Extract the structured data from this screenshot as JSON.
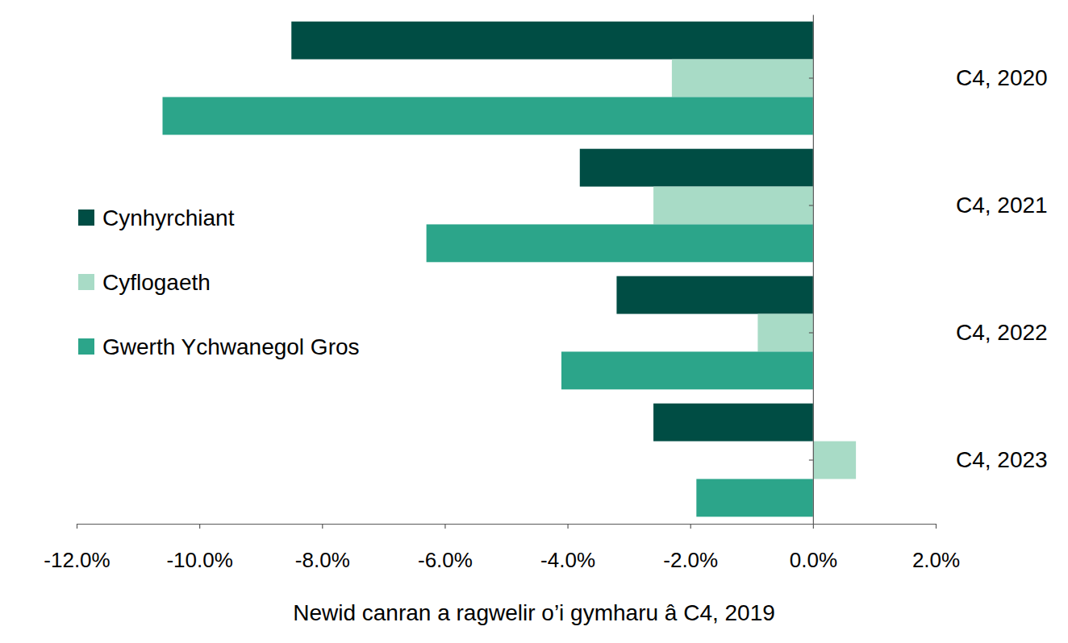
{
  "chart_data": {
    "type": "bar",
    "orientation": "horizontal",
    "grid": false,
    "legend": "left",
    "x_label": "Newid canran a ragwelir o’i gymharu â C4, 2019",
    "categories": [
      "C4, 2020",
      "C4, 2021",
      "C4, 2022",
      "C4, 2023"
    ],
    "series": [
      {
        "name": "Cynhyrchiant",
        "color": "#004d44",
        "values": [
          -8.5,
          -3.8,
          -3.2,
          -2.6
        ]
      },
      {
        "name": "Cyflogaeth",
        "color": "#a8dbc6",
        "values": [
          -2.3,
          -2.6,
          -0.9,
          0.7
        ]
      },
      {
        "name": "Gwerth Ychwanegol Gros",
        "color": "#2ca58a",
        "values": [
          -10.6,
          -6.3,
          -4.1,
          -1.9
        ]
      }
    ],
    "xlim": [
      -12,
      2
    ],
    "xticks": [
      {
        "value": -12,
        "label": "-12.0%"
      },
      {
        "value": -10,
        "label": "-10.0%"
      },
      {
        "value": -8,
        "label": "-8.0%"
      },
      {
        "value": -6,
        "label": "-6.0%"
      },
      {
        "value": -4,
        "label": "-4.0%"
      },
      {
        "value": -2,
        "label": "-2.0%"
      },
      {
        "value": 0,
        "label": "0.0%"
      },
      {
        "value": 2,
        "label": "2.0%"
      }
    ]
  }
}
